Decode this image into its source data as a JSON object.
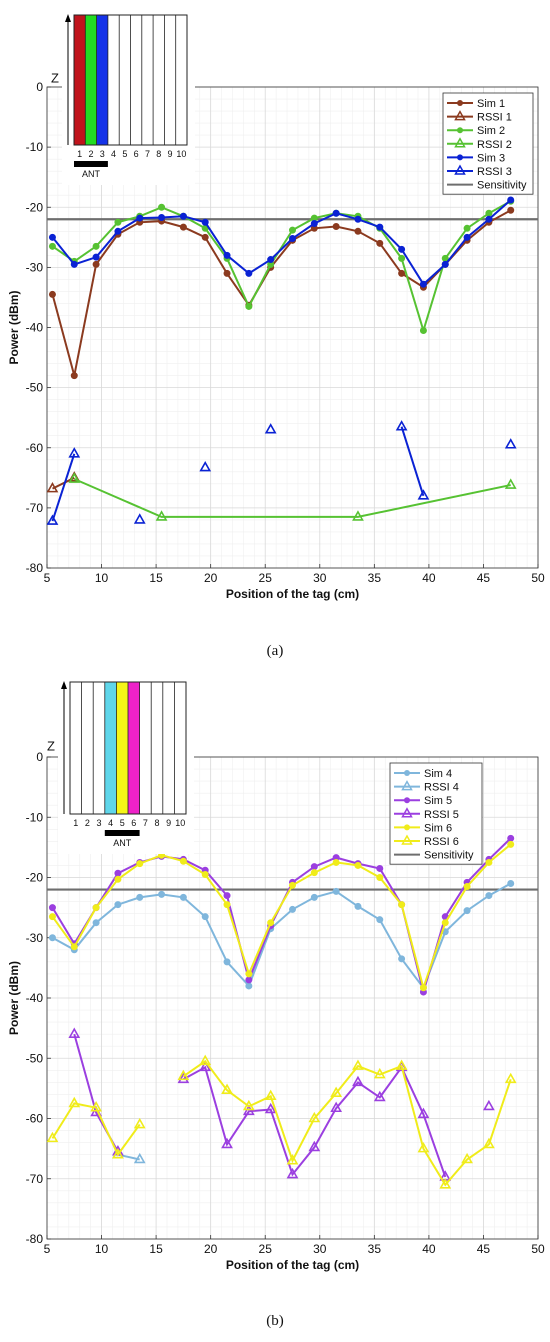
{
  "figure": {
    "captions": [
      "(a)",
      "(b)"
    ]
  },
  "chart_data": [
    {
      "type": "line",
      "panel": "a",
      "xlabel": "Position of the tag (cm)",
      "ylabel": "Power (dBm)",
      "xlim": [
        5,
        50
      ],
      "ylim": [
        -80,
        0
      ],
      "xticks": [
        5,
        10,
        15,
        20,
        25,
        30,
        35,
        40,
        45,
        50
      ],
      "yticks": [
        0,
        -10,
        -20,
        -30,
        -40,
        -50,
        -60,
        -70,
        -80
      ],
      "grid": true,
      "legend_position": "top-right",
      "sensitivity": {
        "name": "Sensitivity",
        "value": -22,
        "color": "#6e6e6e"
      },
      "inset": {
        "axis_label": "Z",
        "slot_labels": [
          "1",
          "2",
          "3",
          "4",
          "5",
          "6",
          "7",
          "8",
          "9",
          "10"
        ],
        "filled_slots": [
          {
            "slot": 1,
            "color": "#c0141c"
          },
          {
            "slot": 2,
            "color": "#22dd22"
          },
          {
            "slot": 3,
            "color": "#1533e8"
          }
        ],
        "antenna_label": "ANT",
        "antenna_slots": [
          1,
          3
        ]
      },
      "series": [
        {
          "name": "Sim 1",
          "marker": "circle",
          "color": "#8b3a1f",
          "x": [
            5.5,
            7.5,
            9.5,
            11.5,
            13.5,
            15.5,
            17.5,
            19.5,
            21.5,
            23.5,
            25.5,
            27.5,
            29.5,
            31.5,
            33.5,
            35.5,
            37.5,
            39.5,
            41.5,
            43.5,
            45.5,
            47.5
          ],
          "y": [
            -34.5,
            -48,
            -29.5,
            -24.5,
            -22.5,
            -22.3,
            -23.3,
            -25,
            -31,
            -36.3,
            -30,
            -25.5,
            -23.5,
            -23.2,
            -24,
            -26,
            -31,
            -33.3,
            -29.5,
            -25.5,
            -22.5,
            -20.5
          ]
        },
        {
          "name": "RSSI 1",
          "marker": "triangle",
          "color": "#8b3a1f",
          "x": [
            5.5,
            7.5
          ],
          "y": [
            -66.8,
            -65
          ]
        },
        {
          "name": "Sim 2",
          "marker": "circle",
          "color": "#56c232",
          "x": [
            5.5,
            7.5,
            9.5,
            11.5,
            13.5,
            15.5,
            17.5,
            19.5,
            21.5,
            23.5,
            25.5,
            27.5,
            29.5,
            31.5,
            33.5,
            35.5,
            37.5,
            39.5,
            41.5,
            43.5,
            45.5,
            47.5
          ],
          "y": [
            -26.5,
            -29,
            -26.5,
            -22.5,
            -21.5,
            -20,
            -21.5,
            -23.5,
            -28.5,
            -36.5,
            -29.5,
            -23.8,
            -21.8,
            -21,
            -21.5,
            -23.5,
            -28.5,
            -40.5,
            -28.5,
            -23.5,
            -21,
            -19
          ]
        },
        {
          "name": "RSSI 2",
          "marker": "triangle",
          "color": "#56c232",
          "x": [
            7.5,
            15.5,
            33.5,
            47.5
          ],
          "y": [
            -65.2,
            -71.5,
            -71.5,
            -66.2
          ]
        },
        {
          "name": "Sim 3",
          "marker": "circle",
          "color": "#0a22d4",
          "x": [
            5.5,
            7.5,
            9.5,
            11.5,
            13.5,
            15.5,
            17.5,
            19.5,
            21.5,
            23.5,
            25.5,
            27.5,
            29.5,
            31.5,
            33.5,
            35.5,
            37.5,
            39.5,
            41.5,
            43.5,
            45.5,
            47.5
          ],
          "y": [
            -25,
            -29.5,
            -28.3,
            -24,
            -21.8,
            -21.7,
            -21.5,
            -22.5,
            -28,
            -31,
            -28.7,
            -25.2,
            -22.7,
            -21,
            -22,
            -23.3,
            -27,
            -32.8,
            -29.5,
            -25,
            -22,
            -18.8
          ]
        },
        {
          "name": "RSSI 3",
          "marker": "triangle",
          "color": "#0a22d4",
          "x": [
            5.5,
            7.5,
            null,
            13.5,
            null,
            19.5,
            null,
            25.5,
            null,
            37.5,
            39.5,
            null,
            47.5
          ],
          "y": [
            -72.2,
            -61,
            null,
            -72,
            null,
            -63.3,
            null,
            -57,
            null,
            -56.5,
            -68,
            null,
            -59.5
          ]
        }
      ]
    },
    {
      "type": "line",
      "panel": "b",
      "xlabel": "Position of the tag (cm)",
      "ylabel": "Power (dBm)",
      "xlim": [
        5,
        50
      ],
      "ylim": [
        -80,
        0
      ],
      "xticks": [
        5,
        10,
        15,
        20,
        25,
        30,
        35,
        40,
        45,
        50
      ],
      "yticks": [
        0,
        -10,
        -20,
        -30,
        -40,
        -50,
        -60,
        -70,
        -80
      ],
      "grid": true,
      "legend_position": "top-right",
      "sensitivity": {
        "name": "Sensitivity",
        "value": -22,
        "color": "#6e6e6e"
      },
      "inset": {
        "axis_label": "Z",
        "slot_labels": [
          "1",
          "2",
          "3",
          "4",
          "5",
          "6",
          "7",
          "8",
          "9",
          "10"
        ],
        "filled_slots": [
          {
            "slot": 4,
            "color": "#5fd6ea"
          },
          {
            "slot": 5,
            "color": "#f5f518"
          },
          {
            "slot": 6,
            "color": "#ee22c8"
          }
        ],
        "antenna_label": "ANT",
        "antenna_slots": [
          4,
          6
        ]
      },
      "series": [
        {
          "name": "Sim 4",
          "marker": "circle",
          "color": "#7fb6dc",
          "x": [
            5.5,
            7.5,
            9.5,
            11.5,
            13.5,
            15.5,
            17.5,
            19.5,
            21.5,
            23.5,
            25.5,
            27.5,
            29.5,
            31.5,
            33.5,
            35.5,
            37.5,
            39.5,
            41.5,
            43.5,
            45.5,
            47.5
          ],
          "y": [
            -30,
            -32,
            -27.5,
            -24.5,
            -23.3,
            -22.8,
            -23.3,
            -26.5,
            -34,
            -38,
            -28.5,
            -25.3,
            -23.3,
            -22.3,
            -24.8,
            -27,
            -33.5,
            -38.3,
            -29,
            -25.5,
            -23,
            -21
          ]
        },
        {
          "name": "RSSI 4",
          "marker": "triangle",
          "color": "#7fb6dc",
          "x": [
            11.5,
            13.5
          ],
          "y": [
            -66,
            -66.8
          ]
        },
        {
          "name": "Sim 5",
          "marker": "circle",
          "color": "#9b3fe0",
          "x": [
            5.5,
            7.5,
            9.5,
            11.5,
            13.5,
            15.5,
            17.5,
            19.5,
            21.5,
            23.5,
            25.5,
            27.5,
            29.5,
            31.5,
            33.5,
            35.5,
            37.5,
            39.5,
            41.5,
            43.5,
            45.5,
            47.5
          ],
          "y": [
            -25,
            -31,
            -25,
            -19.3,
            -17.5,
            -16.5,
            -17,
            -18.8,
            -23,
            -37,
            -28,
            -20.8,
            -18.2,
            -16.7,
            -17.7,
            -18.5,
            -24.5,
            -39,
            -26.5,
            -20.8,
            -17,
            -13.5
          ]
        },
        {
          "name": "RSSI 5",
          "marker": "triangle",
          "color": "#9b3fe0",
          "x": [
            7.5,
            9.5,
            11.5,
            null,
            17.5,
            19.5,
            21.5,
            23.5,
            25.5,
            27.5,
            29.5,
            31.5,
            33.5,
            35.5,
            37.5,
            39.5,
            41.5,
            null,
            45.5
          ],
          "y": [
            -46,
            -59,
            -65.5,
            null,
            -53.5,
            -51.5,
            -64.3,
            -58.8,
            -58.5,
            -69.3,
            -64.8,
            -58.3,
            -54,
            -56.5,
            -51.5,
            -59.3,
            -69.7,
            null,
            -58
          ]
        },
        {
          "name": "Sim 6",
          "marker": "circle",
          "color": "#f0ec1a",
          "x": [
            5.5,
            7.5,
            9.5,
            11.5,
            13.5,
            15.5,
            17.5,
            19.5,
            21.5,
            23.5,
            25.5,
            27.5,
            29.5,
            31.5,
            33.5,
            35.5,
            37.5,
            39.5,
            41.5,
            43.5,
            45.5,
            47.5
          ],
          "y": [
            -26.5,
            -31.5,
            -25,
            -20.3,
            -17.7,
            -16.3,
            -17.3,
            -19.5,
            -24.5,
            -36,
            -27.5,
            -21.3,
            -19.2,
            -17.5,
            -18,
            -20,
            -24.5,
            -38.3,
            -27.5,
            -21.5,
            -17.5,
            -14.5
          ]
        },
        {
          "name": "RSSI 6",
          "marker": "triangle",
          "color": "#f0ec1a",
          "x": [
            5.5,
            7.5,
            9.5,
            11.5,
            13.5,
            null,
            17.5,
            19.5,
            21.5,
            23.5,
            25.5,
            27.5,
            29.5,
            31.5,
            33.5,
            35.5,
            37.5,
            39.5,
            41.5,
            43.5,
            45.5,
            47.5
          ],
          "y": [
            -63.3,
            -57.5,
            -58.2,
            -66,
            -61,
            null,
            -53,
            -50.5,
            -55.3,
            -58,
            -56.3,
            -67,
            -60,
            -55.8,
            -51.3,
            -52.7,
            -51.3,
            -65,
            -71,
            -66.8,
            -64.3,
            -53.5
          ]
        }
      ]
    }
  ]
}
